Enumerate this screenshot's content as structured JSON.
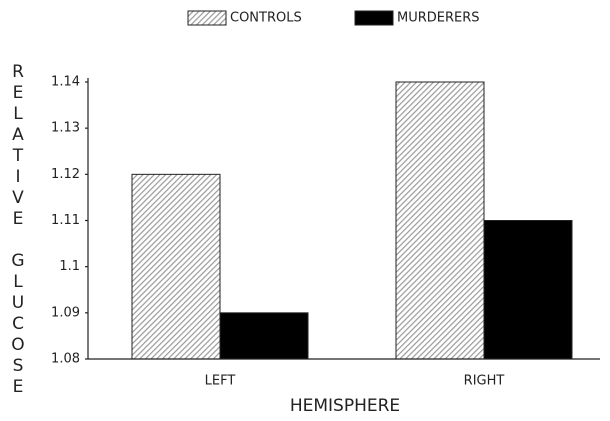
{
  "chart_data": {
    "type": "bar",
    "x_label": "HEMISPHERE",
    "y_label": "RELATIVE GLUCOSE",
    "categories": [
      "LEFT",
      "RIGHT"
    ],
    "series": [
      {
        "name": "CONTROLS",
        "color": "#9a9a9a",
        "values": [
          1.12,
          1.14
        ]
      },
      {
        "name": "MURDERERS",
        "color": "#000000",
        "values": [
          1.09,
          1.11
        ]
      }
    ],
    "ylim": [
      1.08,
      1.14
    ],
    "yticks": [
      1.08,
      1.09,
      1.1,
      1.11,
      1.12,
      1.13,
      1.14
    ],
    "legend": "top"
  }
}
